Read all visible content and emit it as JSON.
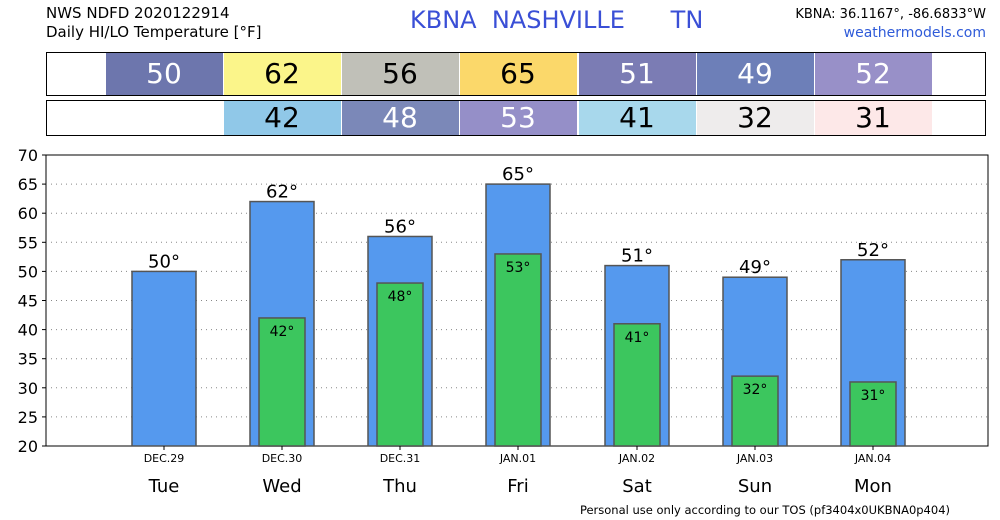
{
  "header": {
    "line1": "NWS NDFD 2020122914",
    "line2": "Daily HI/LO Temperature [°F]",
    "station": "KBNA  NASHVILLE      TN",
    "coords": "KBNA: 36.1167°, -86.6833°W",
    "site": "weathermodels.com"
  },
  "strips": {
    "hi": [
      {
        "value": "50",
        "bg": "#6d76ad",
        "fg": "#ffffff"
      },
      {
        "value": "62",
        "bg": "#fbf58a",
        "fg": "#000000"
      },
      {
        "value": "56",
        "bg": "#c0c0b8",
        "fg": "#000000"
      },
      {
        "value": "65",
        "bg": "#fbd86a",
        "fg": "#000000"
      },
      {
        "value": "51",
        "bg": "#7b7cb4",
        "fg": "#ffffff"
      },
      {
        "value": "49",
        "bg": "#6d7fb8",
        "fg": "#ffffff"
      },
      {
        "value": "52",
        "bg": "#9890c8",
        "fg": "#ffffff"
      }
    ],
    "lo": [
      {
        "value": "",
        "bg": "#ffffff",
        "fg": "#000000"
      },
      {
        "value": "42",
        "bg": "#90c8e8",
        "fg": "#000000"
      },
      {
        "value": "48",
        "bg": "#7b88b8",
        "fg": "#ffffff"
      },
      {
        "value": "53",
        "bg": "#958fc8",
        "fg": "#ffffff"
      },
      {
        "value": "41",
        "bg": "#a8d8ec",
        "fg": "#000000"
      },
      {
        "value": "32",
        "bg": "#eeecec",
        "fg": "#000000"
      },
      {
        "value": "31",
        "bg": "#fde8e8",
        "fg": "#000000"
      }
    ]
  },
  "chart_data": {
    "type": "bar",
    "categories": [
      "Tue",
      "Wed",
      "Thu",
      "Fri",
      "Sat",
      "Sun",
      "Mon"
    ],
    "dates": [
      "DEC.29",
      "DEC.30",
      "DEC.31",
      "JAN.01",
      "JAN.02",
      "JAN.03",
      "JAN.04"
    ],
    "series": [
      {
        "name": "",
        "values": [
          50,
          62,
          56,
          65,
          51,
          49,
          52
        ],
        "color": "#5599ee"
      },
      {
        "name": "",
        "values": [
          null,
          42,
          48,
          53,
          41,
          32,
          31
        ],
        "color": "#3cc65e"
      }
    ],
    "hi_labels": [
      "50°",
      "62°",
      "56°",
      "65°",
      "51°",
      "49°",
      "52°"
    ],
    "lo_labels": [
      "",
      "42°",
      "48°",
      "53°",
      "41°",
      "32°",
      "31°"
    ],
    "yticks": [
      "20",
      "25",
      "30",
      "35",
      "40",
      "45",
      "50",
      "55",
      "60",
      "65",
      "70"
    ],
    "ylim": [
      20,
      70
    ],
    "grid": true,
    "title": "",
    "xlabel": "",
    "ylabel": ""
  },
  "footer": "Personal use only according to our TOS (pf3404x0UKBNA0p404)"
}
